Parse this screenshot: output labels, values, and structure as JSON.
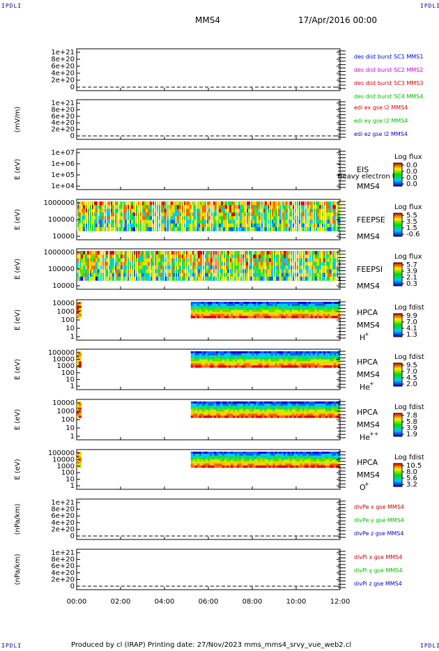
{
  "header": {
    "corner_label": "IPDLI",
    "spacecraft": "MMS4",
    "date": "17/Apr/2016 00:00"
  },
  "footer": {
    "text": "Produced by cl (IRAP)   Printing date: 27/Nov/2023   mms_mms4_srvy_vue_web2.cl"
  },
  "colors": {
    "blue": "#0000cc",
    "magenta": "#cc00cc",
    "red": "#cc0000",
    "green": "#00bb00"
  },
  "chart_data": [
    {
      "type": "line",
      "ylabel": "",
      "yticks": [
        "1e+21",
        "8e+20",
        "6e+20",
        "4e+20",
        "2e+20",
        "0"
      ],
      "legend": [
        {
          "text": "des dist burst SC1 MMS1",
          "color": "#0000cc"
        },
        {
          "text": "des dist burst SC2 MMS2",
          "color": "#cc00cc"
        },
        {
          "text": "des dist burst SC3 MMS3",
          "color": "#cc0000"
        },
        {
          "text": "des dist burst SC4 MMS4",
          "color": "#00bb00"
        }
      ],
      "series": [],
      "zero_line": true
    },
    {
      "type": "line",
      "ylabel": "(mV/m)",
      "yticks": [
        "1e+21",
        "8e+20",
        "6e+20",
        "4e+20",
        "2e+20",
        "0"
      ],
      "legend": [
        {
          "text": "edi ex gse l2 MMS4",
          "color": "#cc0000"
        },
        {
          "text": "edi ey gse l2 MMS4",
          "color": "#00bb00"
        },
        {
          "text": "edi ez gse l2 MMS4",
          "color": "#0000cc"
        }
      ],
      "series": [],
      "zero_line": true
    },
    {
      "type": "heatmap",
      "ylabel": "E (eV)",
      "yticks": [
        "1e+07",
        "1e+06",
        "1e+05",
        "1e+04"
      ],
      "labels": [
        "EIS",
        "MMS4"
      ],
      "overlay": "Heavy electron to",
      "colorbar_title": "Log flux",
      "colorbar_ticks": [
        "0.0",
        "0.0",
        "0.0",
        "0.0"
      ],
      "coverage": []
    },
    {
      "type": "heatmap",
      "ylabel": "E (eV)",
      "yticks": [
        "1000000",
        "100000",
        "10000"
      ],
      "labels": [
        "FEEPSE",
        "MMS4"
      ],
      "colorbar_title": "Log flux",
      "colorbar_ticks": [
        "5.5",
        "3.5",
        "1.5",
        "-0.6"
      ],
      "coverage": [
        [
          0,
          12
        ]
      ]
    },
    {
      "type": "heatmap",
      "ylabel": "E (eV)",
      "yticks": [
        "1000000",
        "100000",
        "10000"
      ],
      "labels": [
        "FEEPSI",
        "MMS4"
      ],
      "colorbar_title": "Log flux",
      "colorbar_ticks": [
        "5.7",
        "3.9",
        "2.1",
        "0.3"
      ],
      "coverage": [
        [
          0,
          12
        ]
      ]
    },
    {
      "type": "heatmap",
      "ylabel": "E (eV)",
      "yticks": [
        "10000",
        "1000",
        "100",
        "10",
        "1"
      ],
      "labels": [
        "HPCA",
        "MMS4",
        "H",
        "+"
      ],
      "colorbar_title": "Log fdist",
      "colorbar_ticks": [
        "9.9",
        "7.0",
        "4.1",
        "1.3"
      ],
      "coverage": [
        [
          0,
          0.2
        ],
        [
          5.2,
          12
        ]
      ]
    },
    {
      "type": "heatmap",
      "ylabel": "E (eV)",
      "yticks": [
        "100000",
        "10000",
        "1000",
        "100",
        "10",
        "1"
      ],
      "labels": [
        "HPCA",
        "MMS4",
        "He",
        "+"
      ],
      "colorbar_title": "Log fdist",
      "colorbar_ticks": [
        "9.5",
        "7.0",
        "4.5",
        "2.0"
      ],
      "coverage": [
        [
          0,
          0.2
        ],
        [
          5.2,
          12
        ]
      ]
    },
    {
      "type": "heatmap",
      "ylabel": "E (eV)",
      "yticks": [
        "10000",
        "1000",
        "100",
        "10",
        "1"
      ],
      "labels": [
        "HPCA",
        "MMS4",
        "He",
        "++"
      ],
      "colorbar_title": "Log fdist",
      "colorbar_ticks": [
        "7.8",
        "5.8",
        "3.9",
        "1.9"
      ],
      "coverage": [
        [
          0,
          0.2
        ],
        [
          5.2,
          12
        ]
      ]
    },
    {
      "type": "heatmap",
      "ylabel": "E (eV)",
      "yticks": [
        "100000",
        "10000",
        "1000",
        "100",
        "10",
        "1"
      ],
      "labels": [
        "HPCA",
        "MMS4",
        "O",
        "+"
      ],
      "colorbar_title": "Log fdist",
      "colorbar_ticks": [
        "10.5",
        "8.0",
        "5.6",
        "3.2"
      ],
      "coverage": [
        [
          0,
          0.2
        ],
        [
          5.2,
          12
        ]
      ]
    },
    {
      "type": "line",
      "ylabel": "(nPa/km)",
      "yticks": [
        "1e+21",
        "8e+20",
        "6e+20",
        "4e+20",
        "2e+20",
        "0"
      ],
      "legend": [
        {
          "text": "divPe x gse MMS4",
          "color": "#cc0000"
        },
        {
          "text": "divPe y gse MMS4",
          "color": "#00bb00"
        },
        {
          "text": "divPe z gse MMS4",
          "color": "#0000cc"
        }
      ],
      "series": [],
      "zero_line": true
    },
    {
      "type": "line",
      "ylabel": "(nPa/km)",
      "yticks": [
        "1e+21",
        "8e+20",
        "6e+20",
        "4e+20",
        "2e+20",
        "0"
      ],
      "legend": [
        {
          "text": "divPi x gse MMS4",
          "color": "#cc0000"
        },
        {
          "text": "divPi y gse MMS4",
          "color": "#00bb00"
        },
        {
          "text": "divPi z gse MMS4",
          "color": "#0000cc"
        }
      ],
      "series": [],
      "zero_line": true
    }
  ],
  "x_axis": {
    "ticks": [
      "00:00",
      "02:00",
      "04:00",
      "06:00",
      "08:00",
      "10:00",
      "12:00"
    ],
    "xlim": [
      0,
      12
    ]
  }
}
